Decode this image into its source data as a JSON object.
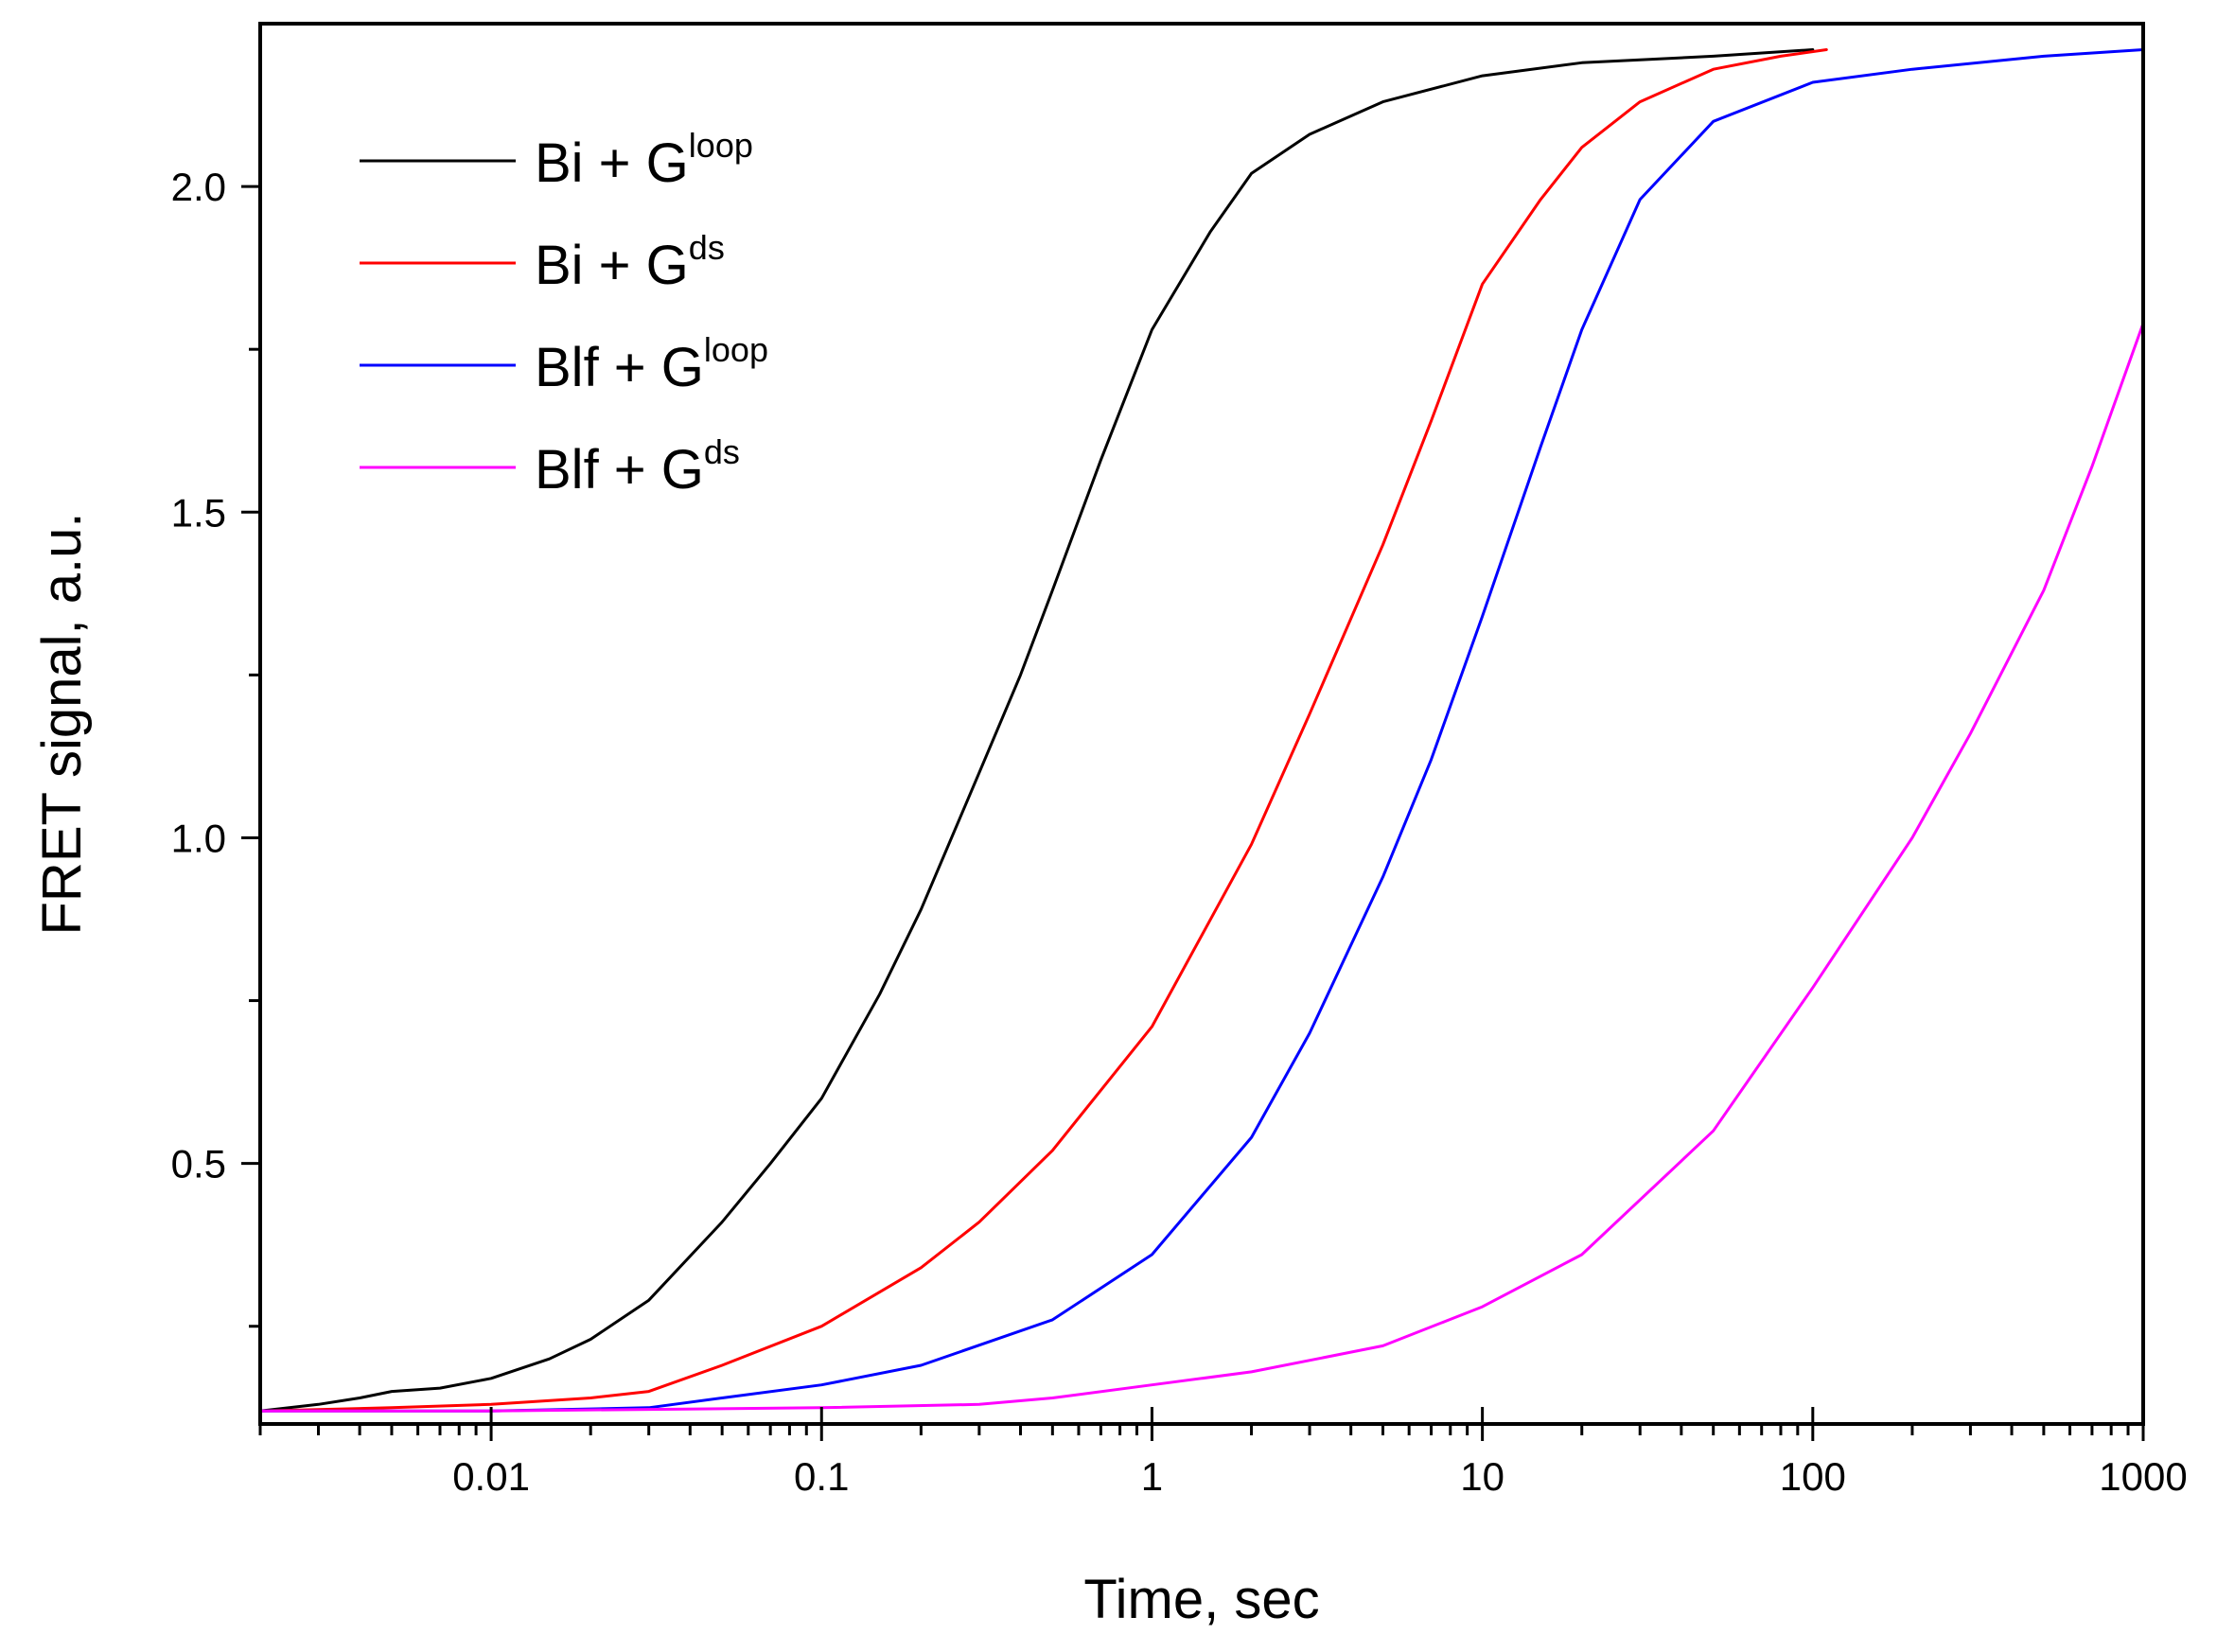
{
  "chart_data": {
    "type": "line",
    "title": "",
    "xlabel": "Time, sec",
    "ylabel": "FRET signal, a.u.",
    "xscale": "log",
    "xlim": [
      0.002,
      1000
    ],
    "ylim": [
      0.1,
      2.25
    ],
    "x_ticks": [
      {
        "value": 0.01,
        "label": "0.01"
      },
      {
        "value": 0.1,
        "label": "0.1"
      },
      {
        "value": 1,
        "label": "1"
      },
      {
        "value": 10,
        "label": "10"
      },
      {
        "value": 100,
        "label": "100"
      },
      {
        "value": 1000,
        "label": "1000"
      }
    ],
    "y_ticks": [
      {
        "value": 0.5,
        "label": "0.5"
      },
      {
        "value": 1.0,
        "label": "1.0"
      },
      {
        "value": 1.5,
        "label": "1.5"
      },
      {
        "value": 2.0,
        "label": "2.0"
      }
    ],
    "y_minor_ticks": [
      0.25,
      0.75,
      1.25,
      1.75
    ],
    "legend_position": "top-left",
    "series": [
      {
        "name": "Bi + G",
        "name_sup": "loop",
        "color": "#000000",
        "points": [
          [
            0.002,
            0.12
          ],
          [
            0.003,
            0.13
          ],
          [
            0.004,
            0.14
          ],
          [
            0.005,
            0.15
          ],
          [
            0.007,
            0.155
          ],
          [
            0.01,
            0.17
          ],
          [
            0.015,
            0.2
          ],
          [
            0.02,
            0.23
          ],
          [
            0.03,
            0.29
          ],
          [
            0.05,
            0.41
          ],
          [
            0.07,
            0.5
          ],
          [
            0.1,
            0.6
          ],
          [
            0.15,
            0.76
          ],
          [
            0.2,
            0.89
          ],
          [
            0.3,
            1.1
          ],
          [
            0.4,
            1.25
          ],
          [
            0.5,
            1.38
          ],
          [
            0.7,
            1.58
          ],
          [
            1,
            1.78
          ],
          [
            1.5,
            1.93
          ],
          [
            2,
            2.02
          ],
          [
            3,
            2.08
          ],
          [
            5,
            2.13
          ],
          [
            10,
            2.17
          ],
          [
            20,
            2.19
          ],
          [
            50,
            2.2
          ],
          [
            100,
            2.21
          ]
        ]
      },
      {
        "name": "Bi + G",
        "name_sup": "ds",
        "color": "#ff0000",
        "points": [
          [
            0.002,
            0.12
          ],
          [
            0.005,
            0.125
          ],
          [
            0.01,
            0.13
          ],
          [
            0.02,
            0.14
          ],
          [
            0.03,
            0.15
          ],
          [
            0.05,
            0.19
          ],
          [
            0.1,
            0.25
          ],
          [
            0.2,
            0.34
          ],
          [
            0.3,
            0.41
          ],
          [
            0.5,
            0.52
          ],
          [
            1,
            0.71
          ],
          [
            2,
            0.99
          ],
          [
            3,
            1.19
          ],
          [
            5,
            1.45
          ],
          [
            7,
            1.64
          ],
          [
            10,
            1.85
          ],
          [
            15,
            1.98
          ],
          [
            20,
            2.06
          ],
          [
            30,
            2.13
          ],
          [
            50,
            2.18
          ],
          [
            80,
            2.2
          ],
          [
            110,
            2.21
          ]
        ]
      },
      {
        "name": "Blf + G",
        "name_sup": "loop",
        "color": "#0000ff",
        "points": [
          [
            0.002,
            0.12
          ],
          [
            0.01,
            0.12
          ],
          [
            0.03,
            0.125
          ],
          [
            0.05,
            0.14
          ],
          [
            0.1,
            0.16
          ],
          [
            0.2,
            0.19
          ],
          [
            0.5,
            0.26
          ],
          [
            1,
            0.36
          ],
          [
            2,
            0.54
          ],
          [
            3,
            0.7
          ],
          [
            5,
            0.94
          ],
          [
            7,
            1.12
          ],
          [
            10,
            1.34
          ],
          [
            15,
            1.6
          ],
          [
            20,
            1.78
          ],
          [
            30,
            1.98
          ],
          [
            50,
            2.1
          ],
          [
            100,
            2.16
          ],
          [
            200,
            2.18
          ],
          [
            500,
            2.2
          ],
          [
            1000,
            2.21
          ]
        ]
      },
      {
        "name": "Blf + G",
        "name_sup": "ds",
        "color": "#ff00ff",
        "points": [
          [
            0.002,
            0.12
          ],
          [
            0.01,
            0.12
          ],
          [
            0.1,
            0.125
          ],
          [
            0.3,
            0.13
          ],
          [
            0.5,
            0.14
          ],
          [
            1,
            0.16
          ],
          [
            2,
            0.18
          ],
          [
            5,
            0.22
          ],
          [
            10,
            0.28
          ],
          [
            20,
            0.36
          ],
          [
            50,
            0.55
          ],
          [
            100,
            0.77
          ],
          [
            200,
            1.0
          ],
          [
            300,
            1.16
          ],
          [
            500,
            1.38
          ],
          [
            700,
            1.57
          ],
          [
            1000,
            1.79
          ]
        ]
      }
    ]
  }
}
